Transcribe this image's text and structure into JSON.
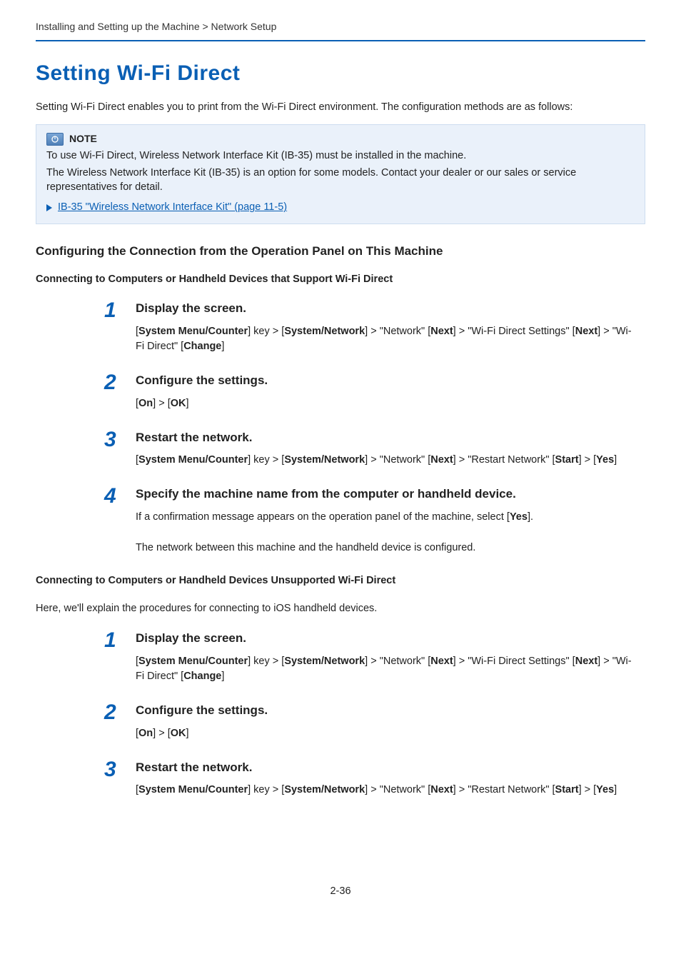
{
  "breadcrumb": "Installing and Setting up the Machine > Network Setup",
  "main_title": "Setting Wi-Fi Direct",
  "intro": "Setting Wi-Fi Direct enables you to print from the Wi-Fi Direct environment. The configuration methods are as follows:",
  "note": {
    "label": "NOTE",
    "line1": "To use Wi-Fi Direct, Wireless Network Interface Kit (IB-35) must be installed in the machine.",
    "line2": "The Wireless Network Interface Kit (IB-35) is an option for some models. Contact your dealer or our sales or service representatives for detail.",
    "link": "IB-35 \"Wireless Network Interface Kit\" (page 11-5)"
  },
  "config_heading": "Configuring the Connection from the Operation Panel on This Machine",
  "section1": {
    "heading": "Connecting to Computers or Handheld Devices that Support Wi-Fi Direct",
    "steps": [
      {
        "num": "1",
        "title": "Display the screen.",
        "body_html": "[<b>System Menu/Counter</b>] key > [<b>System/Network</b>] > \"Network\" [<b>Next</b>] > \"Wi-Fi Direct Settings\" [<b>Next</b>] > \"Wi-Fi Direct\" [<b>Change</b>]"
      },
      {
        "num": "2",
        "title": "Configure the settings.",
        "body_html": "[<b>On</b>] > [<b>OK</b>]"
      },
      {
        "num": "3",
        "title": "Restart the network.",
        "body_html": "[<b>System Menu/Counter</b>] key > [<b>System/Network</b>] > \"Network\" [<b>Next</b>] > \"Restart Network\" [<b>Start</b>] > [<b>Yes</b>]"
      },
      {
        "num": "4",
        "title": "Specify the machine name from the computer or handheld device.",
        "body_html": "If a confirmation message appears on the operation panel of the machine, select [<b>Yes</b>].<br><br>The network between this machine and the handheld device is configured."
      }
    ]
  },
  "section2": {
    "heading": "Connecting to Computers or Handheld Devices Unsupported Wi-Fi Direct",
    "desc": "Here, we'll explain the procedures for connecting to iOS handheld devices.",
    "steps": [
      {
        "num": "1",
        "title": "Display the screen.",
        "body_html": "[<b>System Menu/Counter</b>] key > [<b>System/Network</b>] > \"Network\" [<b>Next</b>] > \"Wi-Fi Direct Settings\" [<b>Next</b>] > \"Wi-Fi Direct\" [<b>Change</b>]"
      },
      {
        "num": "2",
        "title": "Configure the settings.",
        "body_html": "[<b>On</b>] > [<b>OK</b>]"
      },
      {
        "num": "3",
        "title": "Restart the network.",
        "body_html": "[<b>System Menu/Counter</b>] key > [<b>System/Network</b>] > \"Network\" [<b>Next</b>] > \"Restart Network\" [<b>Start</b>] > [<b>Yes</b>]"
      }
    ]
  },
  "page_number": "2-36",
  "colors": {
    "primary_blue": "#0a5fb4",
    "note_bg": "#eaf1fa",
    "note_border": "#cdddef"
  }
}
